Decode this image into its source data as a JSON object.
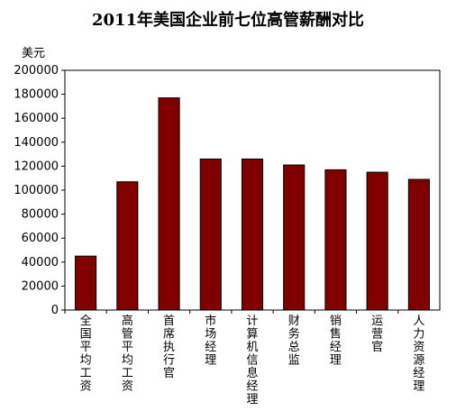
{
  "chart_data": {
    "type": "bar",
    "title": "2011年美国企业前七位高管薪酬对比",
    "ylabel": "美元",
    "xlabel": "",
    "ylim": [
      0,
      200000
    ],
    "yticks": [
      0,
      20000,
      40000,
      60000,
      80000,
      100000,
      120000,
      140000,
      160000,
      180000,
      200000
    ],
    "grid": false,
    "legend": "none",
    "bar_color": "#800000",
    "categories": [
      "全国平均工资",
      "高管平均工资",
      "首席执行官",
      "市场经理",
      "计算机信息经理",
      "财务总监",
      "销售经理",
      "运营官",
      "人力资源经理"
    ],
    "values": [
      45000,
      107000,
      177000,
      126000,
      126000,
      121000,
      117000,
      115000,
      109000
    ]
  }
}
